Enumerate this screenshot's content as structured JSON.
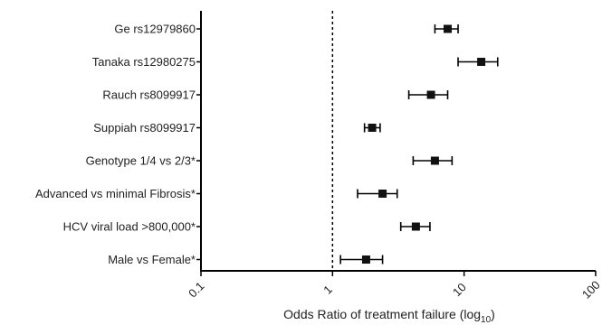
{
  "chart_data": {
    "type": "scatter",
    "orientation": "horizontal",
    "xscale": "log10",
    "xlim": [
      0.1,
      100
    ],
    "xticks": [
      0.1,
      1,
      10,
      100
    ],
    "xtick_labels": [
      "0.1",
      "1",
      "10",
      "100"
    ],
    "xlabel_main": "Odds Ratio of treatment failure (log",
    "xlabel_sub": "10",
    "xlabel_close": ")",
    "reference_line": 1,
    "categories": [
      "Ge rs12979860",
      "Tanaka rs12980275",
      "Rauch rs8099917",
      "Suppiah rs8099917",
      "Genotype 1/4 vs 2/3*",
      "Advanced vs minimal Fibrosis*",
      "HCV viral load >800,000*",
      "Male vs Female*"
    ],
    "points": [
      {
        "or": 7.5,
        "lower": 6.0,
        "upper": 9.0
      },
      {
        "or": 13.5,
        "lower": 9.0,
        "upper": 18.0
      },
      {
        "or": 5.6,
        "lower": 3.8,
        "upper": 7.5
      },
      {
        "or": 2.0,
        "lower": 1.75,
        "upper": 2.3
      },
      {
        "or": 6.0,
        "lower": 4.1,
        "upper": 8.1
      },
      {
        "or": 2.4,
        "lower": 1.55,
        "upper": 3.1
      },
      {
        "or": 4.3,
        "lower": 3.3,
        "upper": 5.5
      },
      {
        "or": 1.8,
        "lower": 1.15,
        "upper": 2.4
      }
    ]
  }
}
